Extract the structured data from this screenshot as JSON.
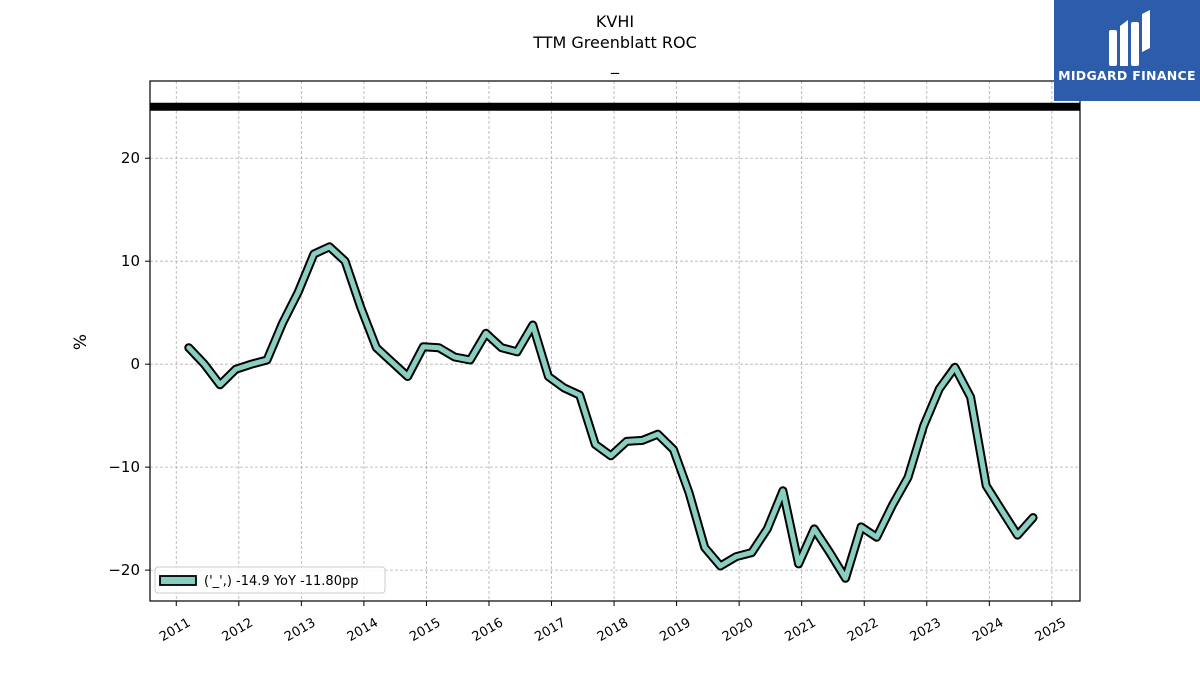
{
  "chart_data": {
    "type": "line",
    "title": "KVHI",
    "subtitle": "TTM Greenblatt ROC",
    "subtitle2": "_",
    "ylabel": "%",
    "xlabel": "",
    "ylim": [
      -23,
      27.5
    ],
    "xlim": [
      2010.58,
      2025.45
    ],
    "yticks": [
      -20,
      -10,
      0,
      10,
      20
    ],
    "xticks": [
      "2011",
      "2012",
      "2013",
      "2014",
      "2015",
      "2016",
      "2017",
      "2018",
      "2019",
      "2020",
      "2021",
      "2022",
      "2023",
      "2024",
      "2025"
    ],
    "grid": true,
    "legend_position": "lower-left",
    "reference_line": 25,
    "series": [
      {
        "name": "('_',) -14.9 YoY -11.80pp",
        "color": "#88cfc2",
        "x": [
          2011.2,
          2011.45,
          2011.7,
          2011.95,
          2012.2,
          2012.45,
          2012.7,
          2012.95,
          2013.2,
          2013.45,
          2013.7,
          2013.95,
          2014.2,
          2014.45,
          2014.7,
          2014.95,
          2015.2,
          2015.45,
          2015.7,
          2015.95,
          2016.2,
          2016.45,
          2016.7,
          2016.95,
          2017.2,
          2017.45,
          2017.7,
          2017.95,
          2018.2,
          2018.45,
          2018.7,
          2018.95,
          2019.2,
          2019.45,
          2019.7,
          2019.95,
          2020.2,
          2020.45,
          2020.7,
          2020.95,
          2021.2,
          2021.45,
          2021.7,
          2021.95,
          2022.2,
          2022.45,
          2022.7,
          2022.95,
          2023.2,
          2023.45,
          2023.7,
          2023.95,
          2024.2,
          2024.45,
          2024.7
        ],
        "values": [
          1.6,
          0.0,
          -2.0,
          -0.5,
          0.0,
          0.4,
          4.0,
          7.0,
          10.7,
          11.4,
          10.0,
          5.5,
          1.6,
          0.2,
          -1.2,
          1.7,
          1.6,
          0.7,
          0.4,
          3.0,
          1.6,
          1.2,
          3.8,
          -1.2,
          -2.3,
          -3.0,
          -7.8,
          -8.9,
          -7.5,
          -7.4,
          -6.8,
          -8.3,
          -12.5,
          -17.8,
          -19.6,
          -18.7,
          -18.3,
          -16.0,
          -12.3,
          -19.4,
          -16.0,
          -18.3,
          -20.8,
          -15.8,
          -16.8,
          -13.7,
          -11.0,
          -6.0,
          -2.4,
          -0.3,
          -3.2,
          -11.8,
          -14.2,
          -16.6,
          -14.9
        ]
      }
    ]
  },
  "logo": {
    "text": "MIDGARD FINANCE"
  }
}
